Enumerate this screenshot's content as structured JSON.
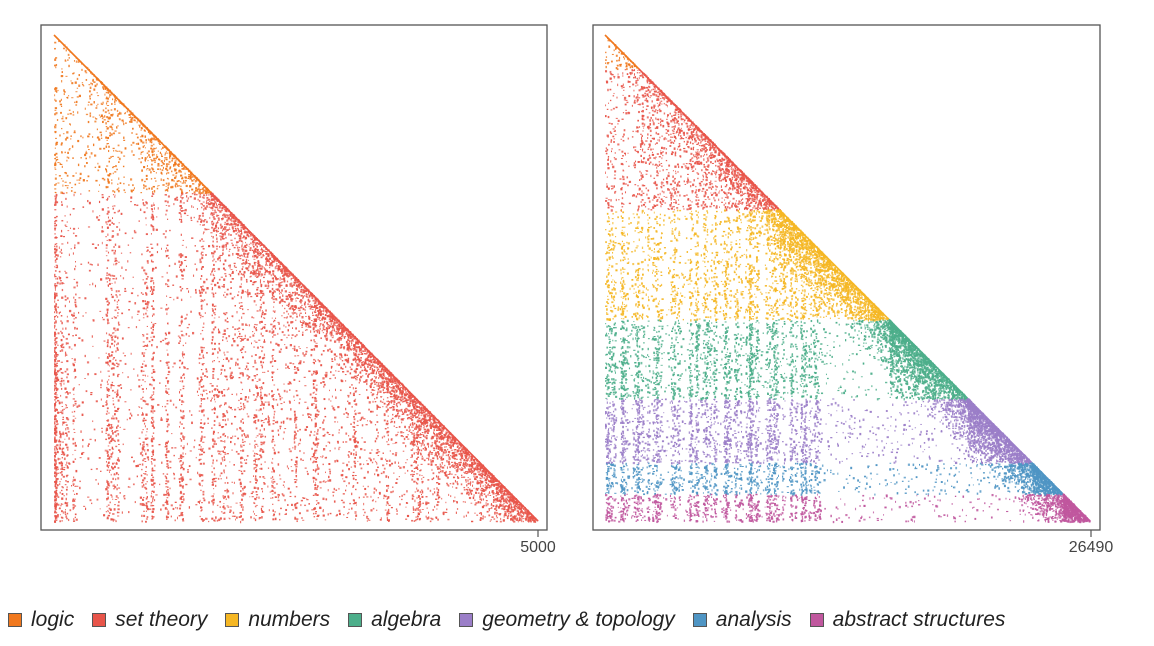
{
  "chart_data": [
    {
      "type": "heatmap",
      "subtype": "lower-triangular dependency matrix",
      "n": 5000,
      "max_tick_label": "5000",
      "band_boundaries": [
        0,
        1620,
        5000
      ],
      "bands": [
        "logic",
        "set theory"
      ]
    },
    {
      "type": "heatmap",
      "subtype": "lower-triangular dependency matrix",
      "n": 26490,
      "max_tick_label": "26490",
      "band_boundaries": [
        0,
        1850,
        9500,
        15500,
        19800,
        23300,
        25000,
        26490
      ],
      "bands": [
        "logic",
        "set theory",
        "numbers",
        "algebra",
        "geometry & topology",
        "analysis",
        "abstract structures"
      ]
    }
  ],
  "legend": [
    {
      "label": "logic",
      "color": "#f0781e"
    },
    {
      "label": "set theory",
      "color": "#e8554a"
    },
    {
      "label": "numbers",
      "color": "#f5b724"
    },
    {
      "label": "algebra",
      "color": "#4cae8a"
    },
    {
      "label": "geometry & topology",
      "color": "#9b7ec8"
    },
    {
      "label": "analysis",
      "color": "#4f95c4"
    },
    {
      "label": "abstract structures",
      "color": "#c0579e"
    }
  ]
}
